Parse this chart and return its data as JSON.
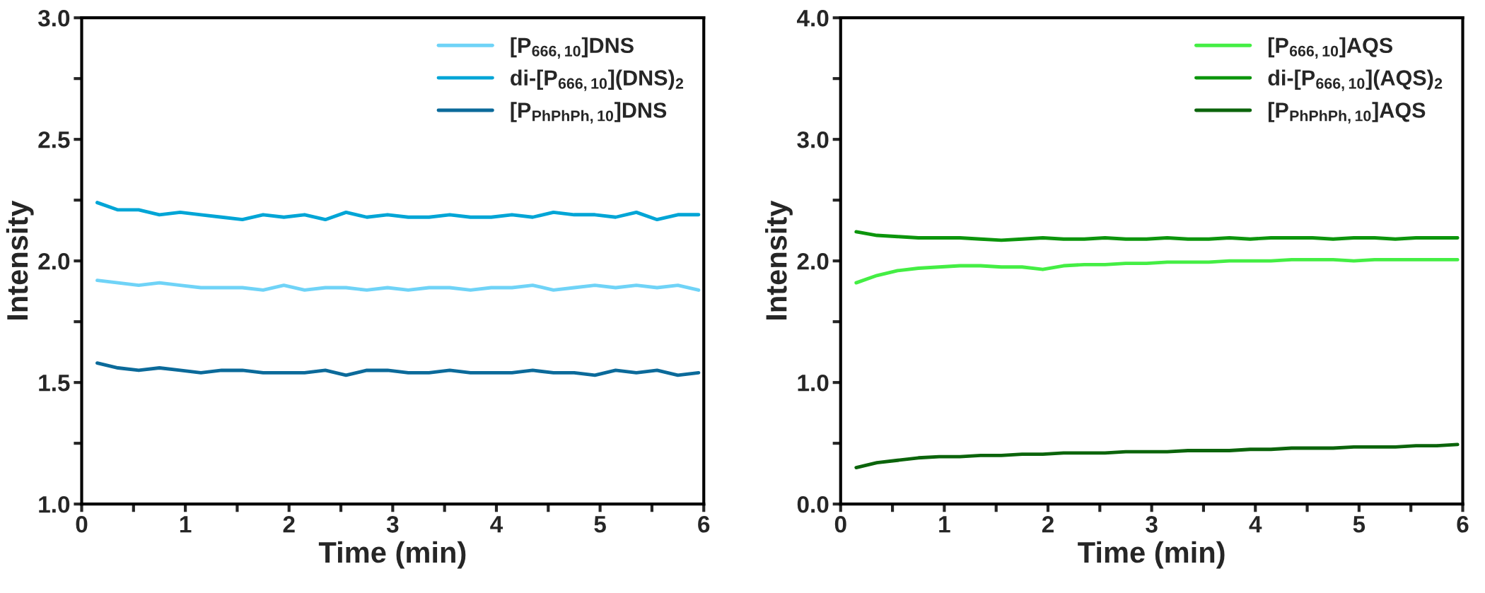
{
  "chart_data": [
    {
      "type": "line",
      "xlabel": "Time (min)",
      "ylabel": "Intensity",
      "xlim": [
        0,
        6
      ],
      "ylim": [
        1.0,
        3.0
      ],
      "xticks": [
        0,
        {
          "value": 0.5,
          "label": null
        },
        1,
        {
          "value": 1.5,
          "label": null
        },
        2,
        {
          "value": 2.5,
          "label": null
        },
        3,
        {
          "value": 3.5,
          "label": null
        },
        4,
        {
          "value": 4.5,
          "label": null
        },
        5,
        {
          "value": 5.5,
          "label": null
        },
        6
      ],
      "yticks": [
        {
          "value": 1.0,
          "label": "1.0"
        },
        {
          "value": 1.25,
          "label": null
        },
        {
          "value": 1.5,
          "label": "1.5"
        },
        {
          "value": 1.75,
          "label": null
        },
        {
          "value": 2.0,
          "label": "2.0"
        },
        {
          "value": 2.25,
          "label": null
        },
        {
          "value": 2.5,
          "label": "2.5"
        },
        {
          "value": 2.75,
          "label": null
        },
        {
          "value": 3.0,
          "label": "3.0"
        }
      ],
      "legend": "top right",
      "grid": false,
      "marker": "none",
      "line_style": "solid",
      "x": [
        0.15,
        0.35,
        0.55,
        0.75,
        0.95,
        1.15,
        1.35,
        1.55,
        1.75,
        1.95,
        2.15,
        2.35,
        2.55,
        2.75,
        2.95,
        3.15,
        3.35,
        3.55,
        3.75,
        3.95,
        4.15,
        4.35,
        4.55,
        4.75,
        4.95,
        5.15,
        5.35,
        5.55,
        5.75,
        5.95
      ],
      "series": [
        {
          "name": "[P$_{666,10}$]DNS",
          "color": "#6fd3f7",
          "values": [
            1.92,
            1.91,
            1.9,
            1.91,
            1.9,
            1.89,
            1.89,
            1.89,
            1.88,
            1.9,
            1.88,
            1.89,
            1.89,
            1.88,
            1.89,
            1.88,
            1.89,
            1.89,
            1.88,
            1.89,
            1.89,
            1.9,
            1.88,
            1.89,
            1.9,
            1.89,
            1.9,
            1.89,
            1.9,
            1.88
          ]
        },
        {
          "name": "di-[P$_{666,10}$](DNS)$_{2}$",
          "color": "#00a5d6",
          "values": [
            2.24,
            2.21,
            2.21,
            2.19,
            2.2,
            2.19,
            2.18,
            2.17,
            2.19,
            2.18,
            2.19,
            2.17,
            2.2,
            2.18,
            2.19,
            2.18,
            2.18,
            2.19,
            2.18,
            2.18,
            2.19,
            2.18,
            2.2,
            2.19,
            2.19,
            2.18,
            2.2,
            2.17,
            2.19,
            2.19
          ]
        },
        {
          "name": "[P$_{PhPhPh,10}$]DNS",
          "color": "#0b6a9a",
          "values": [
            1.58,
            1.56,
            1.55,
            1.56,
            1.55,
            1.54,
            1.55,
            1.55,
            1.54,
            1.54,
            1.54,
            1.55,
            1.53,
            1.55,
            1.55,
            1.54,
            1.54,
            1.55,
            1.54,
            1.54,
            1.54,
            1.55,
            1.54,
            1.54,
            1.53,
            1.55,
            1.54,
            1.55,
            1.53,
            1.54
          ]
        }
      ]
    },
    {
      "type": "line",
      "xlabel": "Time (min)",
      "ylabel": "Intensity",
      "xlim": [
        0,
        6
      ],
      "ylim": [
        0.0,
        4.0
      ],
      "xticks": [
        0,
        {
          "value": 0.5,
          "label": null
        },
        1,
        {
          "value": 1.5,
          "label": null
        },
        2,
        {
          "value": 2.5,
          "label": null
        },
        3,
        {
          "value": 3.5,
          "label": null
        },
        4,
        {
          "value": 4.5,
          "label": null
        },
        5,
        {
          "value": 5.5,
          "label": null
        },
        6
      ],
      "yticks": [
        {
          "value": 0.0,
          "label": "0.0"
        },
        {
          "value": 0.5,
          "label": null
        },
        {
          "value": 1.0,
          "label": "1.0"
        },
        {
          "value": 1.5,
          "label": null
        },
        {
          "value": 2.0,
          "label": "2.0"
        },
        {
          "value": 2.5,
          "label": null
        },
        {
          "value": 3.0,
          "label": "3.0"
        },
        {
          "value": 3.5,
          "label": null
        },
        {
          "value": 4.0,
          "label": "4.0"
        }
      ],
      "legend": "top right",
      "grid": false,
      "marker": "none",
      "line_style": "solid",
      "x": [
        0.15,
        0.35,
        0.55,
        0.75,
        0.95,
        1.15,
        1.35,
        1.55,
        1.75,
        1.95,
        2.15,
        2.35,
        2.55,
        2.75,
        2.95,
        3.15,
        3.35,
        3.55,
        3.75,
        3.95,
        4.15,
        4.35,
        4.55,
        4.75,
        4.95,
        5.15,
        5.35,
        5.55,
        5.75,
        5.95
      ],
      "series": [
        {
          "name": "[P$_{666,10}$]AQS",
          "color": "#44ee44",
          "values": [
            1.82,
            1.88,
            1.92,
            1.94,
            1.95,
            1.96,
            1.96,
            1.95,
            1.95,
            1.93,
            1.96,
            1.97,
            1.97,
            1.98,
            1.98,
            1.99,
            1.99,
            1.99,
            2.0,
            2.0,
            2.0,
            2.01,
            2.01,
            2.01,
            2.0,
            2.01,
            2.01,
            2.01,
            2.01,
            2.01
          ]
        },
        {
          "name": "di-[P$_{666,10}$](AQS)$_{2}$",
          "color": "#0c950c",
          "values": [
            2.24,
            2.21,
            2.2,
            2.19,
            2.19,
            2.19,
            2.18,
            2.17,
            2.18,
            2.19,
            2.18,
            2.18,
            2.19,
            2.18,
            2.18,
            2.19,
            2.18,
            2.18,
            2.19,
            2.18,
            2.19,
            2.19,
            2.19,
            2.18,
            2.19,
            2.19,
            2.18,
            2.19,
            2.19,
            2.19
          ]
        },
        {
          "name": "[P$_{PhPhPh,10}$]AQS",
          "color": "#0b640b",
          "values": [
            0.3,
            0.34,
            0.36,
            0.38,
            0.39,
            0.39,
            0.4,
            0.4,
            0.41,
            0.41,
            0.42,
            0.42,
            0.42,
            0.43,
            0.43,
            0.43,
            0.44,
            0.44,
            0.44,
            0.45,
            0.45,
            0.46,
            0.46,
            0.46,
            0.47,
            0.47,
            0.47,
            0.48,
            0.48,
            0.49
          ]
        }
      ]
    }
  ]
}
